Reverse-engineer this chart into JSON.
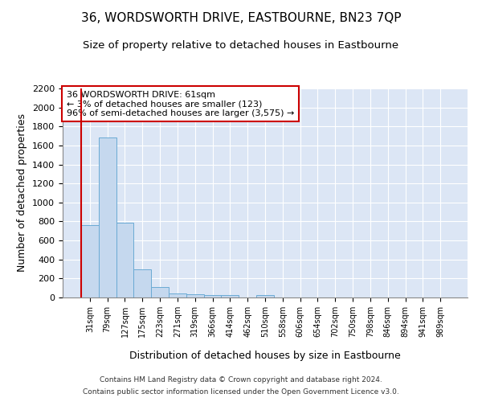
{
  "title": "36, WORDSWORTH DRIVE, EASTBOURNE, BN23 7QP",
  "subtitle": "Size of property relative to detached houses in Eastbourne",
  "xlabel": "Distribution of detached houses by size in Eastbourne",
  "ylabel": "Number of detached properties",
  "categories": [
    "31sqm",
    "79sqm",
    "127sqm",
    "175sqm",
    "223sqm",
    "271sqm",
    "319sqm",
    "366sqm",
    "414sqm",
    "462sqm",
    "510sqm",
    "558sqm",
    "606sqm",
    "654sqm",
    "702sqm",
    "750sqm",
    "798sqm",
    "846sqm",
    "894sqm",
    "941sqm",
    "989sqm"
  ],
  "values": [
    760,
    1680,
    790,
    300,
    110,
    45,
    35,
    25,
    25,
    0,
    25,
    0,
    0,
    0,
    0,
    0,
    0,
    0,
    0,
    0,
    0
  ],
  "bar_color": "#c5d8ee",
  "bar_edgecolor": "#6aaad4",
  "marker_color": "#cc0000",
  "annotation_box_text": "36 WORDSWORTH DRIVE: 61sqm\n← 3% of detached houses are smaller (123)\n96% of semi-detached houses are larger (3,575) →",
  "annotation_box_color": "#cc0000",
  "ylim": [
    0,
    2200
  ],
  "yticks": [
    0,
    200,
    400,
    600,
    800,
    1000,
    1200,
    1400,
    1600,
    1800,
    2000,
    2200
  ],
  "grid_color": "#ffffff",
  "background_color": "#dce6f5",
  "footer_line1": "Contains HM Land Registry data © Crown copyright and database right 2024.",
  "footer_line2": "Contains public sector information licensed under the Open Government Licence v3.0.",
  "title_fontsize": 11,
  "subtitle_fontsize": 9.5,
  "xlabel_fontsize": 9,
  "ylabel_fontsize": 9
}
